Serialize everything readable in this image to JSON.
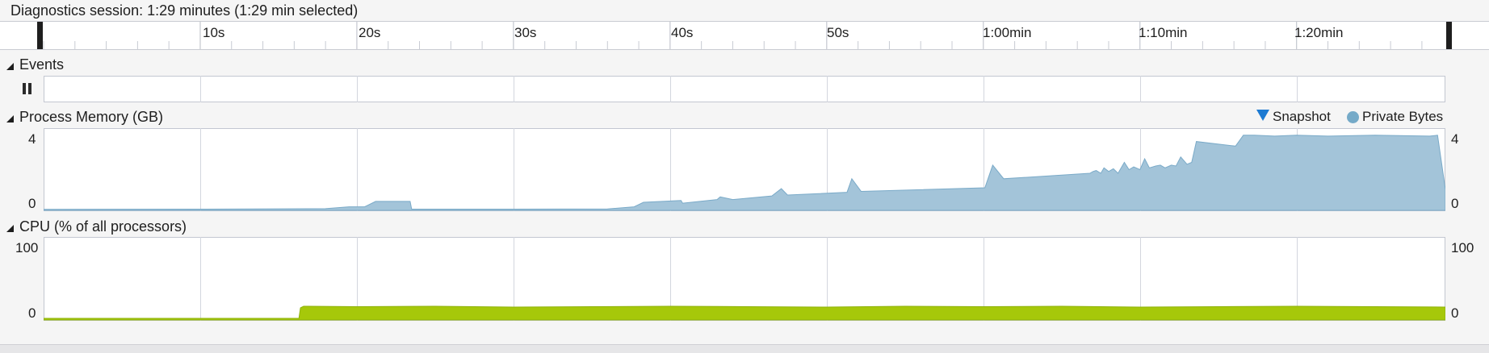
{
  "header": {
    "title": "Diagnostics session: 1:29 minutes (1:29 min selected)"
  },
  "timeline": {
    "total_seconds": 89.5,
    "tick_labels": [
      "10s",
      "20s",
      "30s",
      "40s",
      "50s",
      "1:00min",
      "1:10min",
      "1:20min"
    ]
  },
  "events": {
    "label": "Events",
    "pause_icon": "pause-icon"
  },
  "memory": {
    "label": "Process Memory (GB)",
    "ymax_label": "4",
    "ymin_label": "0",
    "legend": {
      "snapshot": "Snapshot",
      "private_bytes": "Private Bytes"
    },
    "colors": {
      "fill": "#a3c4d9",
      "stroke": "#7aaac8",
      "snapshot": "#1c7ad2"
    }
  },
  "cpu": {
    "label": "CPU (% of all processors)",
    "ymax_label": "100",
    "ymin_label": "0",
    "colors": {
      "fill": "#a6c80a",
      "stroke": "#8fb20b"
    }
  },
  "chart_data": [
    {
      "type": "area",
      "series": [
        {
          "name": "Private Bytes",
          "x": [
            0,
            10,
            18,
            19.5,
            20.5,
            21.2,
            22.3,
            22.6,
            23.4,
            23.5,
            30,
            36,
            37.7,
            38.3,
            40.7,
            40.8,
            43,
            43.2,
            44,
            46.5,
            47.1,
            47.5,
            51.3,
            51.6,
            52.2,
            60.1,
            60.6,
            61.3,
            66.8,
            67,
            67.2,
            67.5,
            67.7,
            68,
            68.3,
            68.6,
            69,
            69.3,
            69.6,
            70,
            70.3,
            70.6,
            71,
            71.3,
            71.6,
            72,
            72.3,
            72.6,
            73,
            73.3,
            73.6,
            76.1,
            76.6,
            77.3,
            78.6,
            80,
            82,
            85,
            88.5,
            89,
            89.5
          ],
          "y": [
            0.01,
            0.02,
            0.05,
            0.15,
            0.15,
            0.45,
            0.45,
            0.45,
            0.45,
            0.02,
            0.02,
            0.03,
            0.15,
            0.4,
            0.5,
            0.35,
            0.55,
            0.7,
            0.55,
            0.75,
            1.15,
            0.8,
            0.95,
            1.7,
            1.0,
            1.2,
            2.45,
            1.7,
            2.0,
            2.1,
            2.15,
            2.0,
            2.3,
            2.1,
            2.25,
            2.0,
            2.6,
            2.2,
            2.35,
            2.2,
            2.8,
            2.3,
            2.4,
            2.45,
            2.3,
            2.45,
            2.4,
            2.9,
            2.5,
            2.6,
            3.75,
            3.5,
            4.1,
            4.1,
            4.05,
            4.1,
            4.05,
            4.1,
            4.05,
            4.1,
            1.1
          ]
        }
      ],
      "xlim": [
        0,
        89.5
      ],
      "ylim": [
        0,
        4.4
      ]
    },
    {
      "type": "area",
      "series": [
        {
          "name": "CPU",
          "x": [
            0,
            10,
            16.3,
            16.4,
            16.6,
            20,
            25,
            30,
            35,
            40,
            45,
            50,
            55,
            60,
            65,
            70,
            75,
            80,
            85,
            89.5
          ],
          "y": [
            1,
            1,
            1,
            14,
            16,
            15.5,
            16,
            15,
            15.5,
            16,
            15.5,
            15,
            16,
            15.5,
            16,
            15,
            15.5,
            16,
            15.5,
            15
          ]
        }
      ],
      "xlim": [
        0,
        89.5
      ],
      "ylim": [
        0,
        100
      ]
    }
  ]
}
